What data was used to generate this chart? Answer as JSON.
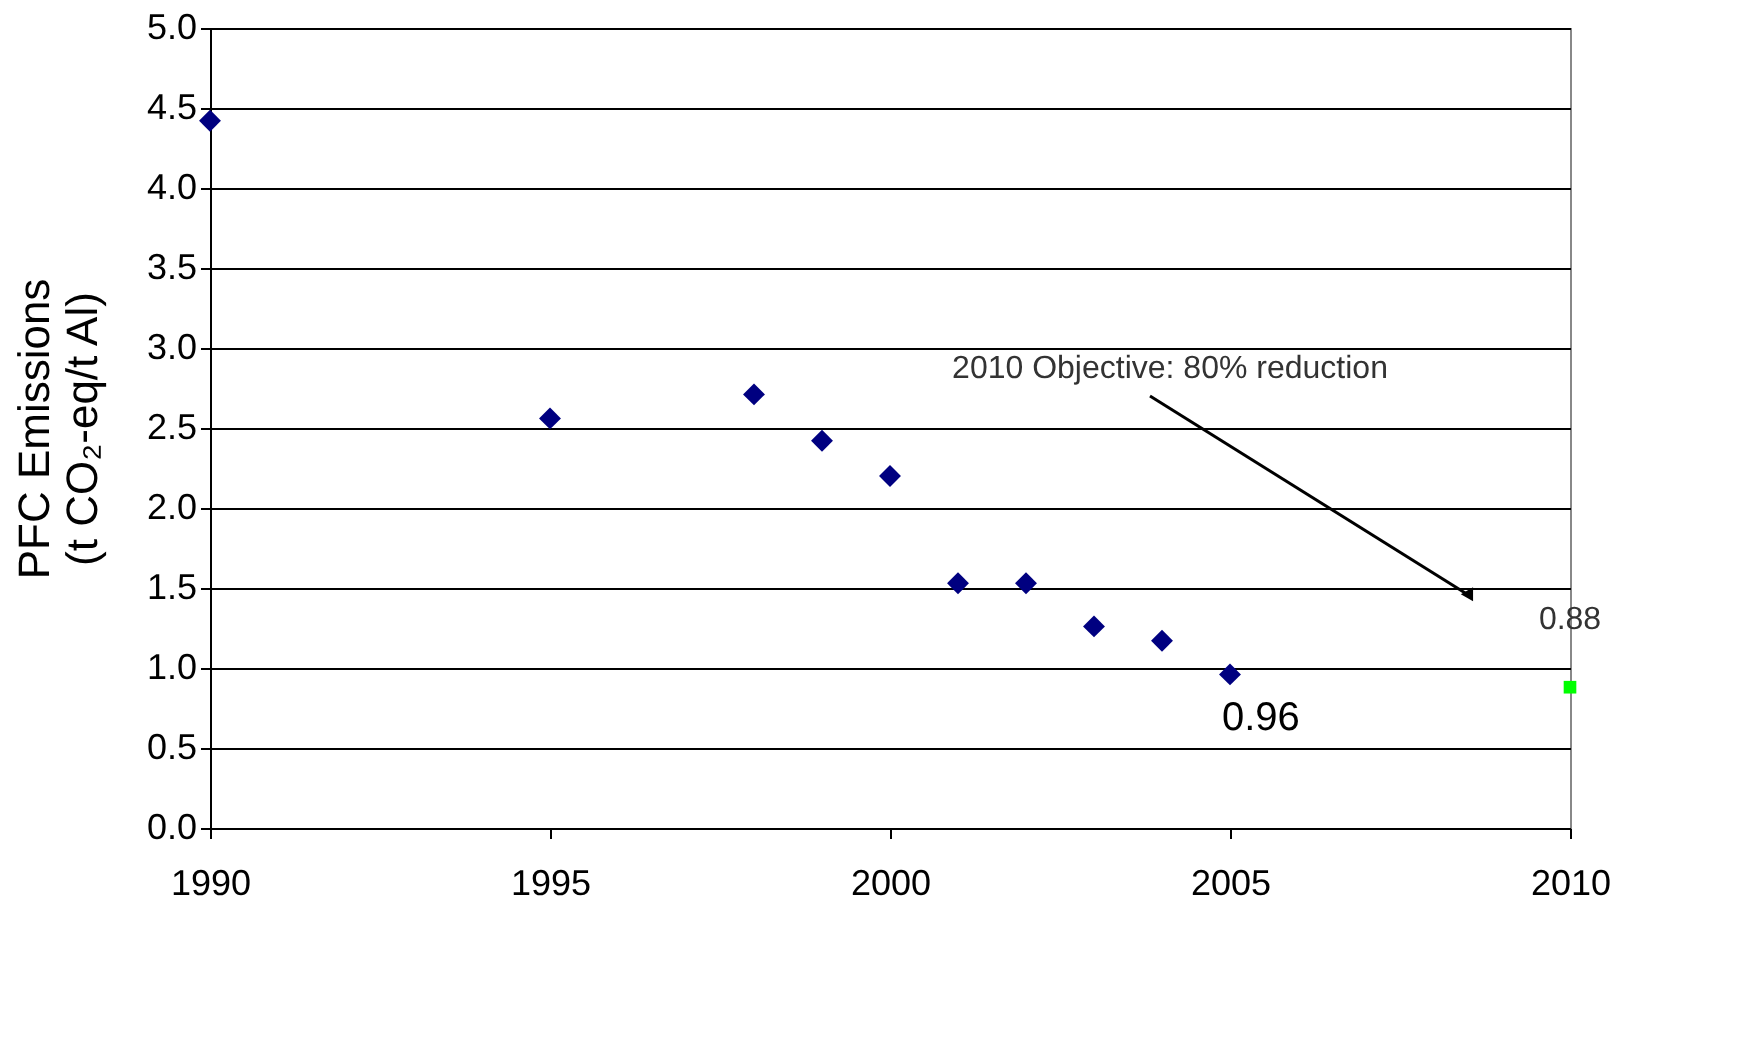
{
  "chart_data": {
    "type": "scatter",
    "ylabel": "PFC Emissions\n(t CO₂-eq/t Al)",
    "xlim": [
      1990,
      2010
    ],
    "xticks": [
      1990,
      1995,
      2000,
      2005,
      2010
    ],
    "ylim": [
      0,
      5
    ],
    "yticks": [
      {
        "value": 0,
        "label": "0.0"
      },
      {
        "value": 0.5,
        "label": "0.5"
      },
      {
        "value": 1,
        "label": "1.0"
      },
      {
        "value": 1.5,
        "label": "1.5"
      },
      {
        "value": 2,
        "label": "2.0"
      },
      {
        "value": 2.5,
        "label": "2.5"
      },
      {
        "value": 3,
        "label": "3.0"
      },
      {
        "value": 3.5,
        "label": "3.5"
      },
      {
        "value": 4,
        "label": "4.0"
      },
      {
        "value": 4.5,
        "label": "4.5"
      },
      {
        "value": 5,
        "label": "5.0"
      }
    ],
    "grid": "y",
    "legend": false,
    "series": [
      {
        "color": "#000080",
        "marker": "diamond",
        "x": [
          1990,
          1995,
          1998,
          1999,
          2000,
          2001,
          2002,
          2003,
          2004,
          2005
        ],
        "values": [
          4.42,
          2.56,
          2.71,
          2.42,
          2.2,
          1.53,
          1.53,
          1.26,
          1.17,
          0.96
        ],
        "value_labels": [
          null,
          null,
          null,
          null,
          null,
          null,
          null,
          null,
          null,
          "0.96"
        ]
      },
      {
        "color": "#00ff00",
        "marker": "square",
        "x": [
          2010
        ],
        "values": [
          0.88
        ],
        "value_labels": [
          "0.88"
        ]
      }
    ],
    "annotations": [
      "2010 Objective: 80% reduction"
    ]
  }
}
